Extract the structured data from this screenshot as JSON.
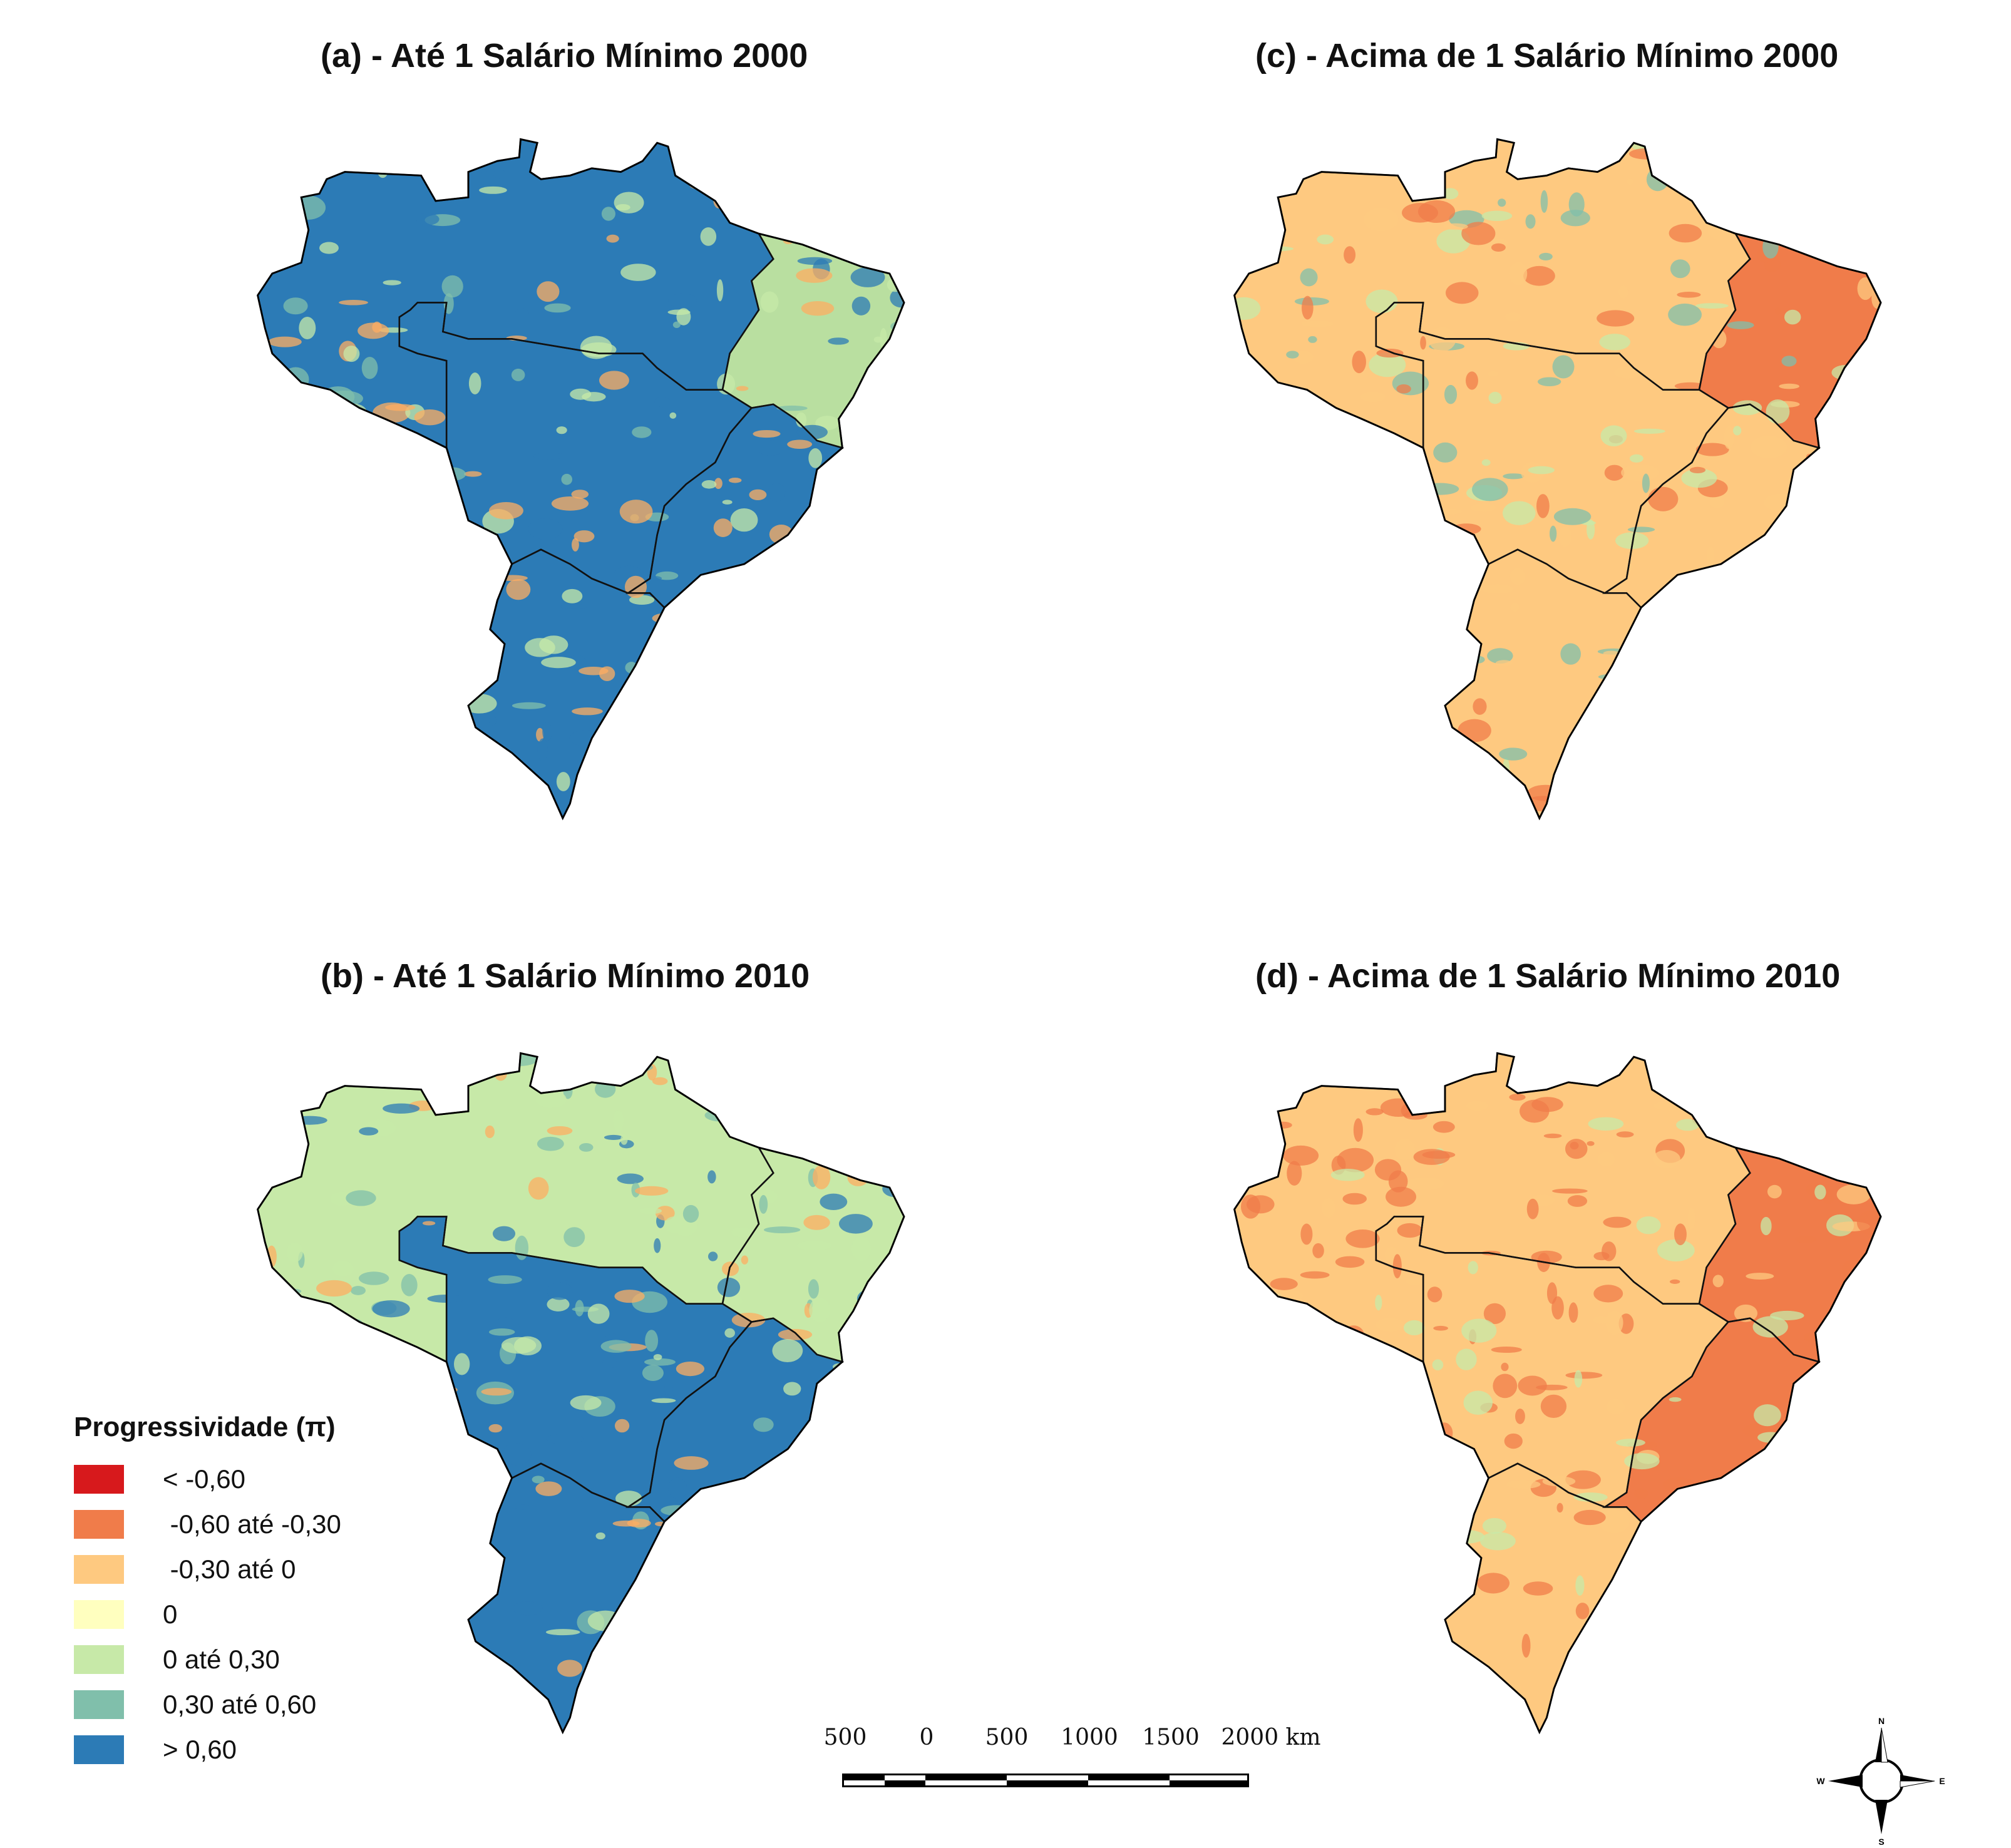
{
  "panels": [
    {
      "id": "a",
      "title": "(a) - Até 1 Salário Mínimo 2000",
      "base_color": "#2c7bb6",
      "region_colors": {
        "north": "#2c7bb6",
        "northeast": "#b9dfa0",
        "centerwest": "#2c7bb6",
        "southeast": "#2c7bb6",
        "south": "#2c7bb6"
      },
      "patch_colors": [
        "#80bfab",
        "#c7e9a8",
        "#2c7bb6",
        "#fdae61"
      ]
    },
    {
      "id": "b",
      "title": "(b) - Até 1 Salário Mínimo 2010",
      "base_color": "#80bfab",
      "region_colors": {
        "north": "#c7e9a8",
        "northeast": "#c7e9a8",
        "centerwest": "#2c7bb6",
        "southeast": "#2c7bb6",
        "south": "#2c7bb6"
      },
      "patch_colors": [
        "#80bfab",
        "#2c7bb6",
        "#c7e9a8",
        "#fdae61"
      ]
    },
    {
      "id": "c",
      "title": "(c) - Acima de 1 Salário Mínimo 2000",
      "base_color": "#fec980",
      "region_colors": {
        "north": "#fec980",
        "northeast": "#f07c4a",
        "centerwest": "#fec980",
        "southeast": "#fec980",
        "south": "#fec980"
      },
      "patch_colors": [
        "#f07c4a",
        "#c7e9a8",
        "#80bfab",
        "#fec980"
      ]
    },
    {
      "id": "d",
      "title": "(d) - Acima de 1 Salário Mínimo 2010",
      "base_color": "#fec980",
      "region_colors": {
        "north": "#fec980",
        "northeast": "#f07c4a",
        "centerwest": "#fec980",
        "southeast": "#f07c4a",
        "south": "#fec980"
      },
      "patch_colors": [
        "#f07c4a",
        "#fec980",
        "#c7e9a8",
        "#f07c4a"
      ]
    }
  ],
  "legend": {
    "title": "Progressividade (π)",
    "items": [
      {
        "label": "< -0,60",
        "color": "#d7191c"
      },
      {
        "label": " -0,60 até -0,30",
        "color": "#f07c4a"
      },
      {
        "label": " -0,30 até 0",
        "color": "#fec980"
      },
      {
        "label": "0",
        "color": "#ffffbf"
      },
      {
        "label": "0 até 0,30",
        "color": "#c7e9a8"
      },
      {
        "label": "0,30 até 0,60",
        "color": "#80bfab"
      },
      {
        "label": "> 0,60",
        "color": "#2c7bb6"
      }
    ]
  },
  "scalebar": {
    "labels": [
      "500",
      "0",
      "500",
      "1000",
      "1500",
      "2000 km"
    ]
  },
  "compass": {
    "n": "N",
    "s": "S",
    "e": "E",
    "w": "W",
    "icon": "compass-rose-icon"
  }
}
